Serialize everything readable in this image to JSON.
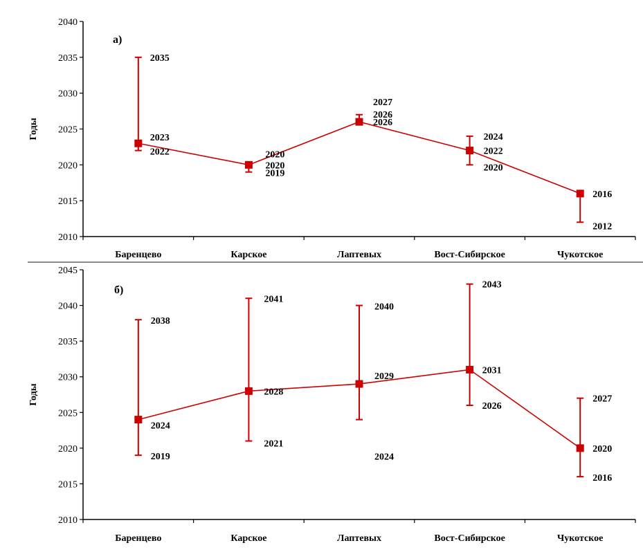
{
  "chart_data": [
    {
      "type": "line",
      "panel_label": "а)",
      "ylabel": "Годы",
      "xlabel": "",
      "ylim": [
        2010,
        2040
      ],
      "yticks": [
        "2010",
        "2015",
        "2020",
        "2025",
        "2030",
        "2035",
        "2040"
      ],
      "categories": [
        "Баренцево",
        "Карское",
        "Лаптевых",
        "Вост-Сибирское",
        "Чукотское"
      ],
      "series": [
        {
          "name": "",
          "values": [
            2023,
            2020,
            2026,
            2022,
            2016
          ],
          "upper": [
            2035,
            2020,
            2027,
            2024,
            2016
          ],
          "lower": [
            2022,
            2019,
            2026,
            2020,
            2012
          ]
        }
      ],
      "annotations": [
        [
          "2035",
          "2023",
          "2022"
        ],
        [
          "2020",
          "2020",
          "2019"
        ],
        [
          "2027",
          "2026",
          "2026"
        ],
        [
          "2024",
          "2022",
          "2020"
        ],
        [
          "2016",
          "2012"
        ]
      ],
      "color": "#cc0000"
    },
    {
      "type": "line",
      "panel_label": "б)",
      "ylabel": "Годы",
      "xlabel": "",
      "ylim": [
        2010,
        2045
      ],
      "yticks": [
        "2010",
        "2015",
        "2020",
        "2025",
        "2030",
        "2035",
        "2040",
        "2045"
      ],
      "categories": [
        "Баренцево",
        "Карское",
        "Лаптевых",
        "Вост-Сибирское",
        "Чукотское"
      ],
      "series": [
        {
          "name": "",
          "values": [
            2024,
            2028,
            2029,
            2031,
            2020
          ],
          "upper": [
            2038,
            2041,
            2040,
            2043,
            2027
          ],
          "lower": [
            2019,
            2021,
            2024,
            2026,
            2016
          ]
        }
      ],
      "annotations": [
        [
          "2038",
          "2024",
          "2019"
        ],
        [
          "2041",
          "2028",
          "2021"
        ],
        [
          "2040",
          "2029",
          "2024"
        ],
        [
          "2043",
          "2031",
          "2026"
        ],
        [
          "2027",
          "2020",
          "2016"
        ]
      ],
      "color": "#cc0000"
    }
  ]
}
